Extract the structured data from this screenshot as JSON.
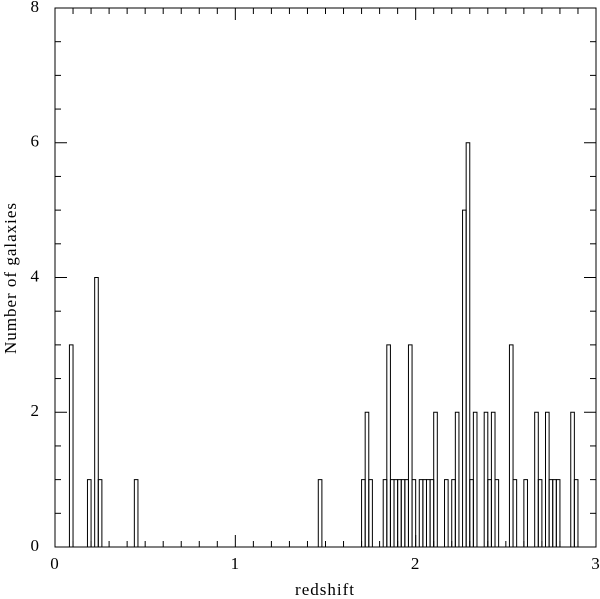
{
  "chart_data": {
    "type": "histogram",
    "xlabel": "redshift",
    "ylabel": "Number of galaxies",
    "color": "#000000",
    "bins": [
      0,
      0.02,
      0.04,
      0.06,
      0.08,
      0.1,
      0.12,
      0.14,
      0.16,
      0.18,
      0.2,
      0.22,
      0.24,
      0.26,
      0.28,
      0.3,
      0.32,
      0.34,
      0.36,
      0.38,
      0.4,
      0.42,
      0.44,
      0.46,
      0.48,
      0.5,
      0.52,
      0.54,
      0.56,
      0.58,
      0.6,
      0.62,
      0.64,
      0.66,
      0.68,
      0.7,
      0.72,
      0.74,
      0.76,
      0.78,
      0.8,
      0.82,
      0.84,
      0.86,
      0.88,
      0.9,
      0.92,
      0.94,
      0.96,
      0.98,
      1,
      1.02,
      1.04,
      1.06,
      1.08,
      1.1,
      1.12,
      1.14,
      1.16,
      1.18,
      1.2,
      1.22,
      1.24,
      1.26,
      1.28,
      1.3,
      1.32,
      1.34,
      1.36,
      1.38,
      1.4,
      1.42,
      1.44,
      1.46,
      1.48,
      1.5,
      1.52,
      1.54,
      1.56,
      1.58,
      1.6,
      1.62,
      1.64,
      1.66,
      1.68,
      1.7,
      1.72,
      1.74,
      1.76,
      1.78,
      1.8,
      1.82,
      1.84,
      1.86,
      1.88,
      1.9,
      1.92,
      1.94,
      1.96,
      1.98,
      2,
      2.02,
      2.04,
      2.06,
      2.08,
      2.1,
      2.12,
      2.14,
      2.16,
      2.18,
      2.2,
      2.22,
      2.24,
      2.26,
      2.28,
      2.3,
      2.32,
      2.34,
      2.36,
      2.38,
      2.4,
      2.42,
      2.44,
      2.46,
      2.48,
      2.5,
      2.52,
      2.54,
      2.56,
      2.58,
      2.6,
      2.62,
      2.64,
      2.66,
      2.68,
      2.7,
      2.72,
      2.74,
      2.76,
      2.78,
      2.8,
      2.82,
      2.84,
      2.86,
      2.88,
      2.9,
      2.92,
      2.94,
      2.96,
      2.98,
      3
    ],
    "values": [
      0,
      0,
      0,
      0,
      3,
      0,
      0,
      0,
      0,
      1,
      0,
      4,
      1,
      0,
      0,
      0,
      0,
      0,
      0,
      0,
      0,
      0,
      1,
      0,
      0,
      0,
      0,
      0,
      0,
      0,
      0,
      0,
      0,
      0,
      0,
      0,
      0,
      0,
      0,
      0,
      0,
      0,
      0,
      0,
      0,
      0,
      0,
      0,
      0,
      0,
      0,
      0,
      0,
      0,
      0,
      0,
      0,
      0,
      0,
      0,
      0,
      0,
      0,
      0,
      0,
      0,
      0,
      0,
      0,
      0,
      0,
      0,
      0,
      1,
      0,
      0,
      0,
      0,
      0,
      0,
      0,
      0,
      0,
      0,
      0,
      1,
      2,
      1,
      0,
      0,
      0,
      1,
      3,
      1,
      1,
      1,
      1,
      1,
      3,
      1,
      0,
      1,
      1,
      1,
      1,
      2,
      0,
      0,
      1,
      0,
      1,
      2,
      0,
      5,
      6,
      1,
      2,
      0,
      0,
      2,
      1,
      2,
      1,
      0,
      0,
      0,
      3,
      1,
      0,
      0,
      1,
      0,
      0,
      2,
      1,
      0,
      2,
      1,
      1,
      1,
      0,
      0,
      0,
      2,
      1,
      0,
      0,
      0,
      0,
      0
    ],
    "xlim": [
      0,
      3
    ],
    "ylim": [
      0,
      8
    ],
    "xticks": [
      0,
      1,
      2,
      3
    ],
    "yticks": [
      0,
      2,
      4,
      6,
      8
    ],
    "xminorticks": [
      0.1,
      0.2,
      0.3,
      0.4,
      0.5,
      0.6,
      0.7,
      0.8,
      0.9,
      1.1,
      1.2,
      1.3,
      1.4,
      1.5,
      1.6,
      1.7,
      1.8,
      1.9,
      2.1,
      2.2,
      2.3,
      2.4,
      2.5,
      2.6,
      2.7,
      2.8,
      2.9
    ],
    "yminorticks": [
      0.5,
      1,
      1.5,
      2.5,
      3,
      3.5,
      4.5,
      5,
      5.5,
      6.5,
      7,
      7.5
    ]
  }
}
